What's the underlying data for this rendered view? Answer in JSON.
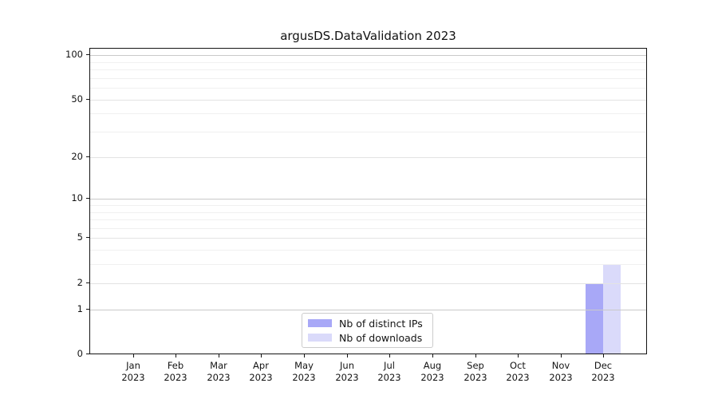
{
  "chart_data": {
    "type": "bar",
    "title": "argusDS.DataValidation 2023",
    "xlabel": "",
    "ylabel": "",
    "categories": [
      "Jan 2023",
      "Feb 2023",
      "Mar 2023",
      "Apr 2023",
      "May 2023",
      "Jun 2023",
      "Jul 2023",
      "Aug 2023",
      "Sep 2023",
      "Oct 2023",
      "Nov 2023",
      "Dec 2023"
    ],
    "month_labels": [
      "Jan",
      "Feb",
      "Mar",
      "Apr",
      "May",
      "Jun",
      "Jul",
      "Aug",
      "Sep",
      "Oct",
      "Nov",
      "Dec"
    ],
    "year_label": "2023",
    "series": [
      {
        "name": "Nb of distinct IPs",
        "color": "#a8a8f7",
        "values": [
          0,
          0,
          0,
          0,
          0,
          0,
          0,
          0,
          0,
          0,
          0,
          2
        ]
      },
      {
        "name": "Nb of downloads",
        "color": "#dadafa",
        "values": [
          0,
          0,
          0,
          0,
          0,
          0,
          0,
          0,
          0,
          0,
          0,
          3
        ]
      }
    ],
    "yscale": "log1p",
    "ylim": [
      0,
      112
    ],
    "y_ticks_labeled": [
      0,
      1,
      2,
      5,
      10,
      20,
      50,
      100
    ],
    "y_ticks_decade": [
      1,
      10,
      100
    ],
    "y_ticks_minor": [
      3,
      4,
      6,
      7,
      8,
      9,
      30,
      40,
      60,
      70,
      80,
      90
    ],
    "grid": true,
    "legend_position": "lower center"
  },
  "colors": {
    "grid_decade": "#c9c9c9",
    "grid_labeled": "#e3e3e3",
    "grid_minor": "#f0f0f0",
    "spine": "#141414",
    "text": "#141414",
    "background": "#ffffff"
  }
}
